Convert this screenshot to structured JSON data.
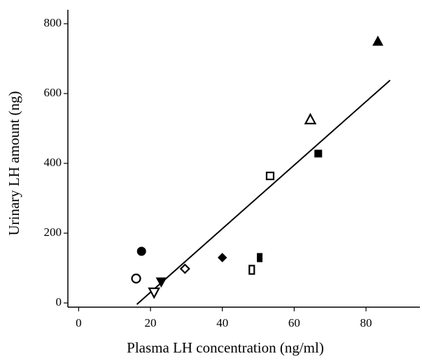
{
  "chart_data": {
    "type": "scatter",
    "x_label": "Plasma LH concentration (ng/ml)",
    "y_label": "Urinary LH amount (ng)",
    "xlim": [
      -3,
      95
    ],
    "xticks": [
      0,
      20,
      40,
      60,
      80
    ],
    "ylim": [
      -12,
      840
    ],
    "yticks": [
      0,
      200,
      400,
      600,
      800
    ],
    "color": "#000000",
    "points": [
      {
        "x": 17.5,
        "y": 148,
        "marker": "circle",
        "filled": true
      },
      {
        "x": 16,
        "y": 70,
        "marker": "circle",
        "filled": false
      },
      {
        "x": 21,
        "y": 30,
        "marker": "triangle-down",
        "filled": false
      },
      {
        "x": 23,
        "y": 60,
        "marker": "triangle-down",
        "filled": true
      },
      {
        "x": 29.6,
        "y": 98,
        "marker": "diamond",
        "filled": false
      },
      {
        "x": 40,
        "y": 130,
        "marker": "diamond",
        "filled": true
      },
      {
        "x": 48.2,
        "y": 95,
        "marker": "rect",
        "filled": false
      },
      {
        "x": 50.4,
        "y": 130,
        "marker": "rect",
        "filled": true
      },
      {
        "x": 53.3,
        "y": 364,
        "marker": "square",
        "filled": false
      },
      {
        "x": 66.7,
        "y": 428,
        "marker": "square",
        "filled": true
      },
      {
        "x": 64.5,
        "y": 526,
        "marker": "triangle",
        "filled": false
      },
      {
        "x": 83.3,
        "y": 750,
        "marker": "triangle",
        "filled": true
      }
    ],
    "fit_line": {
      "x": [
        16.2,
        86.7
      ],
      "y": [
        -4,
        638
      ]
    }
  }
}
